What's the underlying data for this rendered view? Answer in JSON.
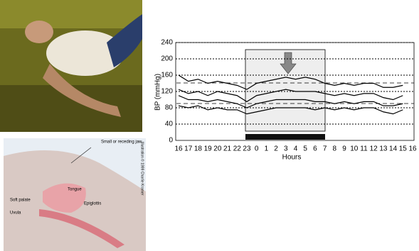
{
  "illustration": {
    "labels": [
      "Small or receding jaw",
      "Tongue",
      "Soft palate",
      "Epiglottis",
      "Uvula"
    ],
    "credit": "Illustration © 1999 Charlie Kramer"
  },
  "chart_data": {
    "type": "line",
    "ylabel": "BP (mmHg)",
    "xlabel": "Hours",
    "categories": [
      "16",
      "17",
      "18",
      "19",
      "20",
      "21",
      "22",
      "23",
      "0",
      "1",
      "2",
      "3",
      "4",
      "5",
      "6",
      "7",
      "8",
      "9",
      "10",
      "11",
      "12",
      "13",
      "14",
      "15",
      "16"
    ],
    "series": [
      {
        "color": "#000000",
        "values": [
          160,
          145,
          150,
          140,
          145,
          140,
          135,
          125,
          140,
          145,
          150,
          155,
          150,
          155,
          150,
          140,
          135,
          140,
          135,
          140,
          140,
          130,
          130,
          135,
          null
        ]
      },
      {
        "color": "#000000",
        "values": [
          125,
          115,
          120,
          110,
          120,
          115,
          110,
          95,
          110,
          115,
          120,
          125,
          120,
          120,
          120,
          115,
          110,
          115,
          110,
          115,
          115,
          105,
          100,
          110,
          null
        ]
      },
      {
        "color": "#000000",
        "values": [
          110,
          100,
          100,
          95,
          100,
          95,
          90,
          80,
          90,
          95,
          100,
          100,
          100,
          100,
          95,
          95,
          90,
          95,
          90,
          95,
          95,
          85,
          85,
          90,
          null
        ]
      },
      {
        "color": "#000000",
        "values": [
          85,
          80,
          85,
          75,
          80,
          75,
          75,
          65,
          70,
          75,
          80,
          80,
          80,
          80,
          75,
          80,
          75,
          80,
          75,
          80,
          80,
          70,
          65,
          75,
          null
        ]
      }
    ],
    "ylim": [
      0,
      240
    ],
    "yticks": [
      0,
      40,
      80,
      120,
      160,
      200,
      240
    ],
    "grid": true
  }
}
